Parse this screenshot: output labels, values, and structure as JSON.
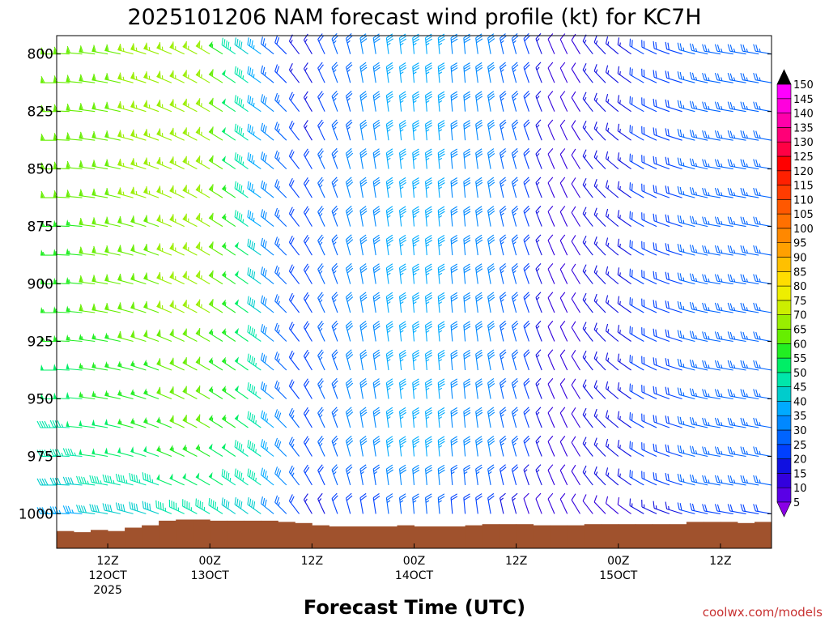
{
  "chart_data": {
    "type": "wind-barb time-height profile",
    "title": "2025101206 NAM forecast wind profile (kt) for KC7H",
    "xlabel": "Forecast Time (UTC)",
    "ylabel": "",
    "x_range_hours": [
      0,
      84
    ],
    "y_range_hpa": [
      1015,
      792
    ],
    "y_ticks": [
      800,
      825,
      850,
      875,
      900,
      925,
      950,
      975,
      1000
    ],
    "x_ticks": [
      {
        "hour": 6,
        "lines": [
          "12Z",
          "12OCT",
          "2025"
        ]
      },
      {
        "hour": 18,
        "lines": [
          "00Z",
          "13OCT"
        ]
      },
      {
        "hour": 30,
        "lines": [
          "12Z"
        ]
      },
      {
        "hour": 42,
        "lines": [
          "00Z",
          "14OCT"
        ]
      },
      {
        "hour": 54,
        "lines": [
          "12Z"
        ]
      },
      {
        "hour": 66,
        "lines": [
          "00Z",
          "15OCT"
        ]
      },
      {
        "hour": 78,
        "lines": [
          "12Z"
        ]
      }
    ],
    "colorbar": {
      "levels": [
        5,
        10,
        15,
        20,
        25,
        30,
        35,
        40,
        45,
        50,
        55,
        60,
        65,
        70,
        75,
        80,
        85,
        90,
        95,
        100,
        105,
        110,
        115,
        120,
        125,
        130,
        135,
        140,
        145,
        150
      ],
      "colors": [
        "#8a00e6",
        "#5a00e6",
        "#3300dd",
        "#1010e0",
        "#0040ff",
        "#0064ff",
        "#0088ff",
        "#00aaff",
        "#00cccc",
        "#00e6aa",
        "#00ee66",
        "#22ee22",
        "#66ee00",
        "#99ee00",
        "#ccee00",
        "#eeee00",
        "#ffdd00",
        "#ffc000",
        "#ffa000",
        "#ff8800",
        "#ff7000",
        "#ff5800",
        "#ff3c00",
        "#ff2000",
        "#ff0000",
        "#ff0044",
        "#ff0077",
        "#ff00aa",
        "#ff00dd",
        "#ff00ff"
      ]
    },
    "wind_pressure_levels_hpa": [
      800,
      812.5,
      825,
      837.5,
      850,
      862.5,
      875,
      887.5,
      900,
      912.5,
      925,
      937.5,
      950,
      962.5,
      975,
      987.5,
      1000
    ],
    "wind_time_points_hours": [
      0,
      18,
      22,
      24,
      26,
      30,
      36,
      42,
      48,
      54,
      56,
      60,
      66,
      72,
      78,
      84
    ],
    "wind_speed_kt": [
      [
        60,
        65,
        40,
        35,
        20,
        15,
        30,
        35,
        30,
        25,
        15,
        10,
        15,
        20,
        25,
        25
      ],
      [
        60,
        65,
        45,
        35,
        20,
        15,
        30,
        35,
        30,
        25,
        15,
        10,
        15,
        20,
        25,
        25
      ],
      [
        60,
        65,
        45,
        35,
        25,
        15,
        30,
        35,
        30,
        25,
        15,
        10,
        15,
        20,
        25,
        25
      ],
      [
        60,
        65,
        45,
        35,
        25,
        15,
        30,
        35,
        30,
        25,
        15,
        10,
        15,
        20,
        25,
        25
      ],
      [
        60,
        65,
        45,
        35,
        25,
        20,
        30,
        35,
        30,
        25,
        15,
        10,
        15,
        20,
        25,
        25
      ],
      [
        60,
        65,
        50,
        35,
        25,
        20,
        30,
        35,
        30,
        25,
        15,
        10,
        15,
        20,
        25,
        25
      ],
      [
        55,
        65,
        50,
        35,
        25,
        20,
        30,
        35,
        30,
        25,
        15,
        10,
        15,
        20,
        25,
        25
      ],
      [
        55,
        65,
        50,
        40,
        25,
        20,
        30,
        35,
        30,
        25,
        15,
        10,
        15,
        20,
        25,
        25
      ],
      [
        55,
        65,
        50,
        40,
        25,
        20,
        30,
        35,
        30,
        25,
        15,
        10,
        15,
        20,
        25,
        25
      ],
      [
        55,
        65,
        50,
        40,
        25,
        20,
        30,
        35,
        30,
        25,
        15,
        10,
        15,
        20,
        25,
        25
      ],
      [
        55,
        60,
        50,
        45,
        25,
        20,
        30,
        35,
        30,
        25,
        15,
        10,
        15,
        20,
        25,
        25
      ],
      [
        50,
        60,
        50,
        45,
        25,
        20,
        30,
        35,
        30,
        25,
        15,
        10,
        15,
        20,
        25,
        25
      ],
      [
        50,
        60,
        50,
        45,
        25,
        20,
        30,
        35,
        30,
        25,
        15,
        10,
        15,
        20,
        25,
        25
      ],
      [
        45,
        60,
        50,
        45,
        30,
        20,
        30,
        35,
        30,
        25,
        15,
        10,
        15,
        20,
        25,
        25
      ],
      [
        45,
        55,
        45,
        45,
        30,
        20,
        30,
        35,
        30,
        25,
        15,
        10,
        15,
        20,
        25,
        25
      ],
      [
        40,
        50,
        45,
        45,
        30,
        20,
        25,
        30,
        25,
        20,
        15,
        10,
        15,
        20,
        25,
        25
      ],
      [
        35,
        45,
        40,
        40,
        25,
        15,
        20,
        25,
        20,
        15,
        10,
        10,
        10,
        15,
        20,
        20
      ]
    ],
    "wind_direction_deg": [
      [
        270,
        300,
        305,
        305,
        310,
        330,
        350,
        355,
        355,
        345,
        340,
        335,
        310,
        290,
        280,
        280
      ],
      [
        270,
        300,
        305,
        305,
        310,
        330,
        350,
        355,
        355,
        345,
        340,
        335,
        310,
        290,
        280,
        280
      ],
      [
        270,
        300,
        305,
        305,
        310,
        330,
        350,
        355,
        355,
        345,
        340,
        335,
        310,
        290,
        280,
        280
      ],
      [
        270,
        300,
        305,
        305,
        310,
        330,
        350,
        355,
        355,
        345,
        340,
        335,
        310,
        290,
        280,
        280
      ],
      [
        270,
        300,
        305,
        305,
        310,
        330,
        350,
        355,
        355,
        345,
        340,
        335,
        310,
        290,
        280,
        280
      ],
      [
        270,
        300,
        305,
        305,
        310,
        330,
        350,
        355,
        355,
        345,
        340,
        335,
        310,
        290,
        280,
        280
      ],
      [
        270,
        300,
        305,
        305,
        310,
        330,
        350,
        355,
        355,
        345,
        340,
        335,
        310,
        290,
        280,
        280
      ],
      [
        270,
        300,
        305,
        305,
        310,
        330,
        350,
        355,
        355,
        345,
        340,
        335,
        310,
        290,
        280,
        280
      ],
      [
        270,
        300,
        305,
        305,
        310,
        330,
        350,
        355,
        355,
        345,
        340,
        335,
        310,
        290,
        280,
        280
      ],
      [
        270,
        300,
        305,
        305,
        310,
        330,
        350,
        355,
        355,
        345,
        340,
        335,
        310,
        290,
        280,
        280
      ],
      [
        270,
        300,
        305,
        305,
        310,
        330,
        350,
        355,
        355,
        345,
        340,
        335,
        310,
        290,
        280,
        280
      ],
      [
        270,
        300,
        305,
        305,
        310,
        330,
        350,
        355,
        355,
        345,
        340,
        335,
        310,
        290,
        280,
        280
      ],
      [
        270,
        300,
        305,
        305,
        310,
        330,
        350,
        355,
        355,
        345,
        340,
        335,
        310,
        290,
        280,
        280
      ],
      [
        270,
        300,
        305,
        305,
        310,
        330,
        350,
        355,
        355,
        345,
        340,
        335,
        310,
        290,
        280,
        280
      ],
      [
        270,
        300,
        305,
        305,
        310,
        330,
        350,
        355,
        355,
        345,
        340,
        335,
        310,
        290,
        280,
        280
      ],
      [
        270,
        300,
        305,
        305,
        310,
        330,
        350,
        355,
        355,
        345,
        340,
        335,
        310,
        290,
        280,
        280
      ],
      [
        270,
        300,
        305,
        305,
        310,
        330,
        350,
        355,
        355,
        345,
        340,
        335,
        310,
        290,
        280,
        280
      ]
    ],
    "terrain_surface_pressure_hpa": {
      "hours": [
        0,
        2,
        4,
        6,
        8,
        10,
        12,
        14,
        16,
        18,
        20,
        22,
        24,
        26,
        28,
        30,
        32,
        34,
        36,
        38,
        40,
        42,
        44,
        46,
        48,
        50,
        52,
        54,
        56,
        58,
        60,
        62,
        64,
        66,
        68,
        70,
        72,
        74,
        76,
        78,
        80,
        82,
        84
      ],
      "values": [
        1007.5,
        1008,
        1007,
        1007.5,
        1006,
        1005,
        1003,
        1002.5,
        1002.5,
        1003,
        1003,
        1003,
        1003,
        1003.5,
        1004,
        1005,
        1005.5,
        1005.5,
        1005.5,
        1005.5,
        1005,
        1005.5,
        1005.5,
        1005.5,
        1005,
        1004.5,
        1004.5,
        1004.5,
        1005,
        1005,
        1005,
        1004.5,
        1004.5,
        1004.5,
        1004.5,
        1004.5,
        1004.5,
        1003.5,
        1003.5,
        1003.5,
        1004,
        1003.5,
        1003.5
      ]
    },
    "terrain_color": "#a0522d"
  },
  "credit": "coolwx.com/models"
}
